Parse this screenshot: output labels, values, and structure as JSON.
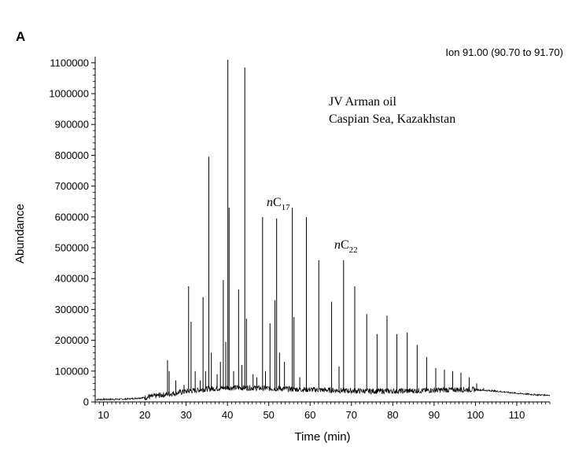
{
  "panel_label": "A",
  "ion_label": "Ion 91.00 (90.70 to 91.70)",
  "sample": {
    "line1": "JV Arman oil",
    "line2": "Caspian Sea, Kazakhstan"
  },
  "peak_labels": [
    {
      "italic": "n",
      "main": "C",
      "sub": "17",
      "time": 51.2,
      "abundance": 610000
    },
    {
      "italic": "n",
      "main": "C",
      "sub": "22",
      "time": 67.0,
      "abundance": 500000
    }
  ],
  "chart_data": {
    "type": "line",
    "title": "",
    "xlabel": "Time (min)",
    "ylabel": "Abundance",
    "xlim": [
      8,
      118
    ],
    "ylim": [
      0,
      1120000
    ],
    "xticks": [
      "10",
      "20",
      "30",
      "40",
      "50",
      "60",
      "70",
      "80",
      "90",
      "100",
      "110"
    ],
    "xtick_values": [
      10,
      20,
      30,
      40,
      50,
      60,
      70,
      80,
      90,
      100,
      110
    ],
    "yticks": [
      "0",
      "100000",
      "200000",
      "300000",
      "400000",
      "500000",
      "600000",
      "700000",
      "800000",
      "900000",
      "1000000",
      "1100000"
    ],
    "ytick_values": [
      0,
      100000,
      200000,
      300000,
      400000,
      500000,
      600000,
      700000,
      800000,
      900000,
      1000000,
      1100000
    ],
    "grid": false,
    "color": "#000000",
    "baseline": [
      [
        8,
        8000
      ],
      [
        15,
        9000
      ],
      [
        20,
        14000
      ],
      [
        25,
        24000
      ],
      [
        30,
        34000
      ],
      [
        35,
        42000
      ],
      [
        40,
        46000
      ],
      [
        45,
        46000
      ],
      [
        50,
        44000
      ],
      [
        55,
        42000
      ],
      [
        60,
        40000
      ],
      [
        65,
        38000
      ],
      [
        70,
        36000
      ],
      [
        75,
        35000
      ],
      [
        80,
        35000
      ],
      [
        85,
        36000
      ],
      [
        90,
        38000
      ],
      [
        95,
        40000
      ],
      [
        100,
        40000
      ],
      [
        105,
        35000
      ],
      [
        110,
        28000
      ],
      [
        115,
        23000
      ],
      [
        118,
        22000
      ]
    ],
    "peaks": [
      [
        21.0,
        25000
      ],
      [
        22.0,
        20000
      ],
      [
        23.5,
        30000
      ],
      [
        25.5,
        135000
      ],
      [
        25.9,
        100000
      ],
      [
        27.5,
        70000
      ],
      [
        29.5,
        55000
      ],
      [
        30.6,
        375000
      ],
      [
        31.2,
        260000
      ],
      [
        32.2,
        100000
      ],
      [
        33.4,
        70000
      ],
      [
        34.1,
        340000
      ],
      [
        34.7,
        100000
      ],
      [
        35.5,
        795000
      ],
      [
        36.1,
        160000
      ],
      [
        37.5,
        90000
      ],
      [
        38.3,
        130000
      ],
      [
        39.0,
        395000
      ],
      [
        39.6,
        195000
      ],
      [
        40.1,
        1110000
      ],
      [
        40.4,
        630000
      ],
      [
        41.5,
        100000
      ],
      [
        42.7,
        365000
      ],
      [
        43.5,
        120000
      ],
      [
        44.2,
        1085000
      ],
      [
        44.6,
        270000
      ],
      [
        46.2,
        90000
      ],
      [
        47.1,
        80000
      ],
      [
        48.5,
        600000
      ],
      [
        49.2,
        100000
      ],
      [
        50.3,
        255000
      ],
      [
        51.5,
        330000
      ],
      [
        51.9,
        595000
      ],
      [
        52.6,
        160000
      ],
      [
        53.8,
        130000
      ],
      [
        55.7,
        630000
      ],
      [
        56.1,
        275000
      ],
      [
        57.5,
        80000
      ],
      [
        59.1,
        600000
      ],
      [
        62.1,
        460000
      ],
      [
        65.2,
        325000
      ],
      [
        67.0,
        115000
      ],
      [
        68.1,
        460000
      ],
      [
        70.8,
        375000
      ],
      [
        73.7,
        285000
      ],
      [
        76.2,
        220000
      ],
      [
        78.6,
        280000
      ],
      [
        81.0,
        220000
      ],
      [
        83.5,
        225000
      ],
      [
        85.9,
        185000
      ],
      [
        88.2,
        145000
      ],
      [
        90.4,
        110000
      ],
      [
        92.5,
        105000
      ],
      [
        94.5,
        100000
      ],
      [
        96.5,
        95000
      ],
      [
        98.5,
        80000
      ],
      [
        100.3,
        60000
      ],
      [
        102.0,
        45000
      ],
      [
        104.0,
        40000
      ]
    ]
  }
}
